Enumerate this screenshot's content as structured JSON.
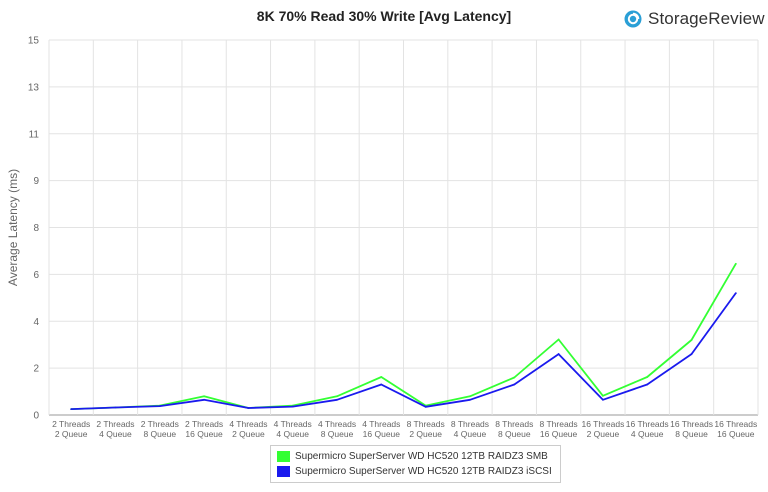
{
  "title": "8K 70% Read 30% Write [Avg Latency]",
  "brand": {
    "name": "StorageReview",
    "icon": "storagereview-logo-icon",
    "color": "#2a9fd6"
  },
  "chart_data": {
    "type": "line",
    "title": "8K 70% Read 30% Write [Avg Latency]",
    "ylabel": "Average Latency (ms)",
    "xlabel": "",
    "ylim": [
      0,
      16
    ],
    "y_ticks": [
      "0",
      "2",
      "4",
      "6",
      "8",
      "9",
      "11",
      "13",
      "15"
    ],
    "grid": true,
    "legend_position": "bottom",
    "categories": [
      [
        "2 Threads",
        "2 Queue"
      ],
      [
        "2 Threads",
        "4 Queue"
      ],
      [
        "2 Threads",
        "8 Queue"
      ],
      [
        "2 Threads",
        "16 Queue"
      ],
      [
        "4 Threads",
        "2 Queue"
      ],
      [
        "4 Threads",
        "4 Queue"
      ],
      [
        "4 Threads",
        "8 Queue"
      ],
      [
        "4 Threads",
        "16 Queue"
      ],
      [
        "8 Threads",
        "2 Queue"
      ],
      [
        "8 Threads",
        "4 Queue"
      ],
      [
        "8 Threads",
        "8 Queue"
      ],
      [
        "8 Threads",
        "16 Queue"
      ],
      [
        "16 Threads",
        "2 Queue"
      ],
      [
        "16 Threads",
        "4 Queue"
      ],
      [
        "16 Threads",
        "8 Queue"
      ],
      [
        "16 Threads",
        "16 Queue"
      ]
    ],
    "series": [
      {
        "name": "Supermicro SuperServer WD HC520 12TB RAIDZ3 SMB",
        "color": "#33ff33",
        "values": [
          0.25,
          0.32,
          0.4,
          0.8,
          0.3,
          0.4,
          0.8,
          1.62,
          0.4,
          0.8,
          1.6,
          3.22,
          0.82,
          1.62,
          3.2,
          6.45
        ]
      },
      {
        "name": "Supermicro SuperServer WD HC520 12TB RAIDZ3 iSCSI",
        "color": "#1a1aee",
        "values": [
          0.25,
          0.32,
          0.38,
          0.65,
          0.3,
          0.36,
          0.65,
          1.3,
          0.35,
          0.65,
          1.3,
          2.6,
          0.65,
          1.3,
          2.6,
          5.2
        ]
      }
    ]
  }
}
